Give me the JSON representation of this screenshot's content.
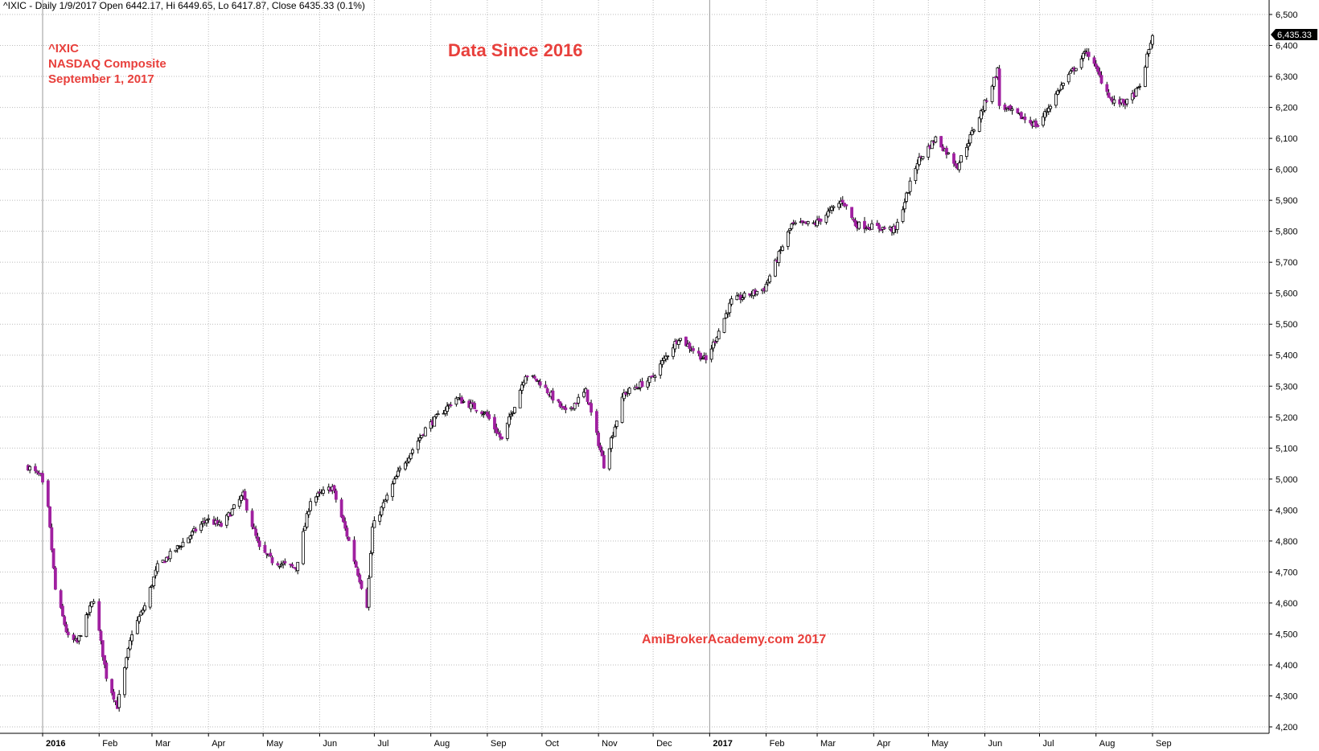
{
  "header": {
    "text": "^IXIC - Daily 1/9/2017 Open 6442.17, Hi 6449.65, Lo 6417.87, Close 6435.33 (0.1%)"
  },
  "annotations": {
    "symbol": "^IXIC",
    "name": "NASDAQ Composite",
    "date": "September 1, 2017",
    "title": "Data Since 2016",
    "watermark": "AmiBrokerAcademy.com  2017"
  },
  "last_price_label": "6,435.33",
  "colors": {
    "up": "#ffffff",
    "down": "#a020a0",
    "wick": "#000000",
    "annotation": "#e8403c",
    "grid": "#bbbbbb"
  },
  "chart_data": {
    "type": "candlestick",
    "symbol": "^IXIC",
    "interval": "Daily",
    "ylim": [
      4200,
      6500
    ],
    "yticks": [
      4200,
      4300,
      4400,
      4500,
      4600,
      4700,
      4800,
      4900,
      5000,
      5100,
      5200,
      5300,
      5400,
      5500,
      5600,
      5700,
      5800,
      5900,
      6000,
      6100,
      6200,
      6300,
      6400,
      6500
    ],
    "ytick_labels": [
      "4,200",
      "4,300",
      "4,400",
      "4,500",
      "4,600",
      "4,700",
      "4,800",
      "4,900",
      "5,000",
      "5,100",
      "5,200",
      "5,300",
      "5,400",
      "5,500",
      "5,600",
      "5,700",
      "5,800",
      "5,900",
      "6,000",
      "6,100",
      "6,200",
      "6,300",
      "6,400",
      "6,500"
    ],
    "xaxis": [
      {
        "label": "2016",
        "date": "2016-01-01",
        "bold": true
      },
      {
        "label": "Feb",
        "date": "2016-02-01"
      },
      {
        "label": "Mar",
        "date": "2016-03-01"
      },
      {
        "label": "Apr",
        "date": "2016-04-01"
      },
      {
        "label": "May",
        "date": "2016-05-01"
      },
      {
        "label": "Jun",
        "date": "2016-06-01"
      },
      {
        "label": "Jul",
        "date": "2016-07-01"
      },
      {
        "label": "Aug",
        "date": "2016-08-01"
      },
      {
        "label": "Sep",
        "date": "2016-09-01"
      },
      {
        "label": "Oct",
        "date": "2016-10-01"
      },
      {
        "label": "Nov",
        "date": "2016-11-01"
      },
      {
        "label": "Dec",
        "date": "2016-12-01"
      },
      {
        "label": "2017",
        "date": "2017-01-01",
        "bold": true
      },
      {
        "label": "Feb",
        "date": "2017-02-01"
      },
      {
        "label": "Mar",
        "date": "2017-03-01"
      },
      {
        "label": "Apr",
        "date": "2017-04-01"
      },
      {
        "label": "May",
        "date": "2017-05-01"
      },
      {
        "label": "Jun",
        "date": "2017-06-01"
      },
      {
        "label": "Jul",
        "date": "2017-07-01"
      },
      {
        "label": "Aug",
        "date": "2017-08-01"
      },
      {
        "label": "Sep",
        "date": "2017-09-01"
      }
    ],
    "approx_closes": {
      "2015-12-24": 5040,
      "2015-12-31": 5007,
      "2016-01-04": 4903,
      "2016-01-08": 4643,
      "2016-01-15": 4488,
      "2016-01-20": 4472,
      "2016-01-29": 4614,
      "2016-02-05": 4363,
      "2016-02-11": 4267,
      "2016-02-19": 4504,
      "2016-02-26": 4590,
      "2016-03-04": 4717,
      "2016-03-18": 4795,
      "2016-03-31": 4870,
      "2016-04-08": 4850,
      "2016-04-20": 4948,
      "2016-04-29": 4775,
      "2016-05-06": 4736,
      "2016-05-19": 4712,
      "2016-05-27": 4933,
      "2016-06-08": 4974,
      "2016-06-17": 4800,
      "2016-06-27": 4594,
      "2016-06-30": 4843,
      "2016-07-15": 5030,
      "2016-07-29": 5162,
      "2016-08-15": 5262,
      "2016-08-31": 5213,
      "2016-09-09": 5126,
      "2016-09-22": 5339,
      "2016-09-30": 5312,
      "2016-10-14": 5214,
      "2016-10-25": 5283,
      "2016-11-04": 5046,
      "2016-11-15": 5276,
      "2016-11-30": 5324,
      "2016-12-15": 5457,
      "2016-12-30": 5383,
      "2017-01-13": 5574,
      "2017-01-31": 5615,
      "2017-02-15": 5820,
      "2017-02-28": 5825,
      "2017-03-15": 5900,
      "2017-03-22": 5822,
      "2017-04-13": 5805,
      "2017-04-25": 6025,
      "2017-05-05": 6100,
      "2017-05-17": 6011,
      "2017-05-31": 6198,
      "2017-06-08": 6321,
      "2017-06-09": 6207,
      "2017-06-30": 6140,
      "2017-07-12": 6261,
      "2017-07-27": 6382,
      "2017-08-10": 6217,
      "2017-08-18": 6216,
      "2017-08-25": 6265,
      "2017-09-01": 6435
    }
  }
}
